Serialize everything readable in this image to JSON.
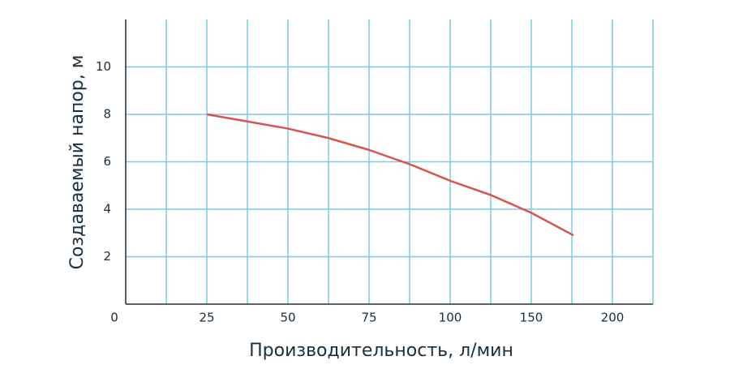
{
  "chart_data": {
    "type": "line",
    "xlabel": "Производительность, л/мин",
    "ylabel": "Создаваемый напор, м",
    "x": [
      25,
      37.5,
      50,
      62.5,
      75,
      87.5,
      100,
      125,
      150,
      176
    ],
    "series": [
      {
        "color": "#d9534f",
        "values": [
          8,
          7.7,
          7.4,
          7.0,
          6.5,
          5.9,
          5.2,
          4.6,
          3.85,
          2.9
        ]
      }
    ],
    "xlim": [
      0,
      225
    ],
    "xticks": [
      0,
      25,
      50,
      75,
      100,
      150,
      200
    ],
    "xgrid": [
      12.5,
      25,
      37.5,
      50,
      62.5,
      75,
      87.5,
      100,
      125,
      150,
      175,
      200,
      225
    ],
    "ylim": [
      0,
      12
    ],
    "yticks": [
      2,
      4,
      6,
      8,
      10
    ],
    "grid": true,
    "grid_color": "#7fcbe3"
  }
}
